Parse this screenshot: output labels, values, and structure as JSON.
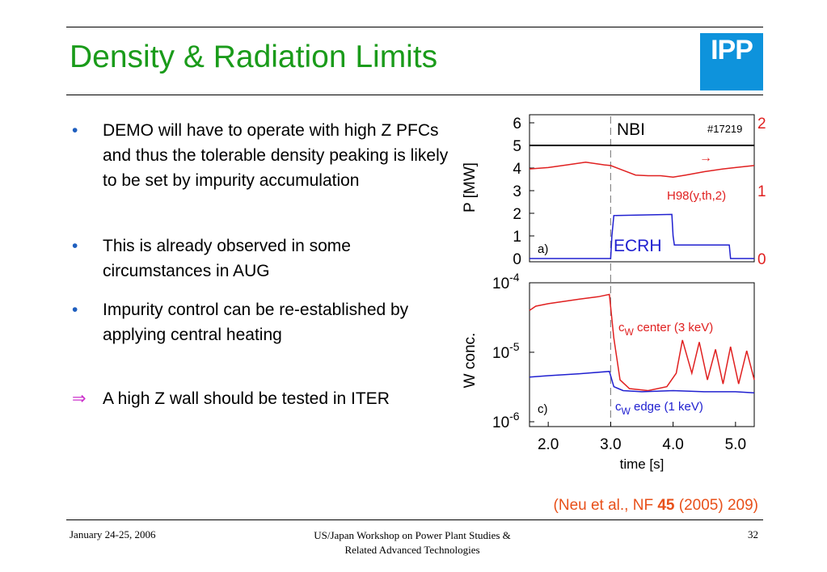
{
  "header": {
    "title": "Density & Radiation Limits",
    "logo_text": "IPP"
  },
  "bullets": [
    {
      "marker": "•",
      "text": "DEMO will have to operate with high Z PFCs and thus the tolerable density peaking is likely to be set by impurity accumulation"
    },
    {
      "marker": "•",
      "text": "This is already observed in some circumstances in AUG"
    },
    {
      "marker": "•",
      "text": "Impurity control can be re-established by applying central heating"
    },
    {
      "marker": "⇒",
      "text": "A high Z wall should be tested in ITER"
    }
  ],
  "citation": {
    "prefix": "(Neu et al., NF ",
    "volume": "45",
    "suffix": " (2005) 209)"
  },
  "footer": {
    "date": "January 24-25, 2006",
    "event_line1": "US/Japan Workshop on Power Plant Studies &",
    "event_line2": "Related Advanced Technologies",
    "page": "32"
  },
  "colors": {
    "title": "#1a9b1a",
    "logo": "#0e93dc",
    "citation": "#e8501a",
    "red": "#e02020",
    "blue": "#2020d0",
    "arrow": "#cc33cc"
  },
  "chart_data": [
    {
      "type": "line",
      "panel_label": "a)",
      "shot": "#17219",
      "ylabel": "P  [MW]",
      "ylim": [
        0,
        6
      ],
      "yticks": [
        "0",
        "1",
        "2",
        "3",
        "4",
        "5",
        "6"
      ],
      "right_ylim": [
        0,
        2
      ],
      "right_yticks": [
        "0",
        "1",
        "2"
      ],
      "xlim": [
        1.7,
        5.3
      ],
      "series": [
        {
          "name": "NBI",
          "axis": "left",
          "color": "#000000",
          "x": [
            1.7,
            5.3
          ],
          "y": [
            5.0,
            5.0
          ]
        },
        {
          "name": "H98(y,th,2)",
          "axis": "right",
          "color": "#e02020",
          "x": [
            1.7,
            2.0,
            2.3,
            2.6,
            2.9,
            3.0,
            3.2,
            3.4,
            3.6,
            3.8,
            4.0,
            4.2,
            4.5,
            4.8,
            5.0,
            5.3
          ],
          "y": [
            1.32,
            1.34,
            1.38,
            1.42,
            1.38,
            1.37,
            1.3,
            1.23,
            1.22,
            1.22,
            1.2,
            1.23,
            1.28,
            1.32,
            1.34,
            1.37
          ]
        },
        {
          "name": "ECRH",
          "axis": "left",
          "color": "#2020d0",
          "x": [
            1.7,
            3.0,
            3.02,
            3.05,
            3.98,
            4.0,
            4.02,
            4.9,
            4.92,
            4.96,
            5.3
          ],
          "y": [
            0,
            0,
            1.0,
            1.9,
            1.95,
            1.0,
            0.6,
            0.6,
            0.0,
            0.0,
            0.0
          ]
        }
      ],
      "annotation_arrow": "→"
    },
    {
      "type": "line",
      "panel_label": "c)",
      "ylabel": "W conc.",
      "yscale": "log",
      "ylim": [
        1e-06,
        0.0001
      ],
      "xlabel": "time [s]",
      "xlim": [
        1.7,
        5.3
      ],
      "xticks": [
        "2.0",
        "3.0",
        "4.0",
        "5.0"
      ],
      "series": [
        {
          "name": "c_W center (3 keV)",
          "color": "#e02020",
          "x": [
            1.7,
            1.8,
            2.0,
            2.5,
            2.8,
            2.98,
            3.05,
            3.15,
            3.3,
            3.6,
            3.9,
            4.05,
            4.15,
            4.3,
            4.42,
            4.55,
            4.68,
            4.8,
            4.92,
            5.05,
            5.18,
            5.3
          ],
          "y": [
            4e-05,
            4.6e-05,
            5e-05,
            5.8e-05,
            6.3e-05,
            6.8e-05,
            1.6e-05,
            4e-06,
            3e-06,
            2.8e-06,
            3.2e-06,
            5e-06,
            1.5e-05,
            5e-06,
            1.4e-05,
            4e-06,
            1.1e-05,
            3.5e-06,
            1.2e-05,
            3.5e-06,
            1.05e-05,
            4e-06
          ]
        },
        {
          "name": "c_W edge (1 keV)",
          "color": "#2020d0",
          "x": [
            1.7,
            2.0,
            2.5,
            2.98,
            3.05,
            3.2,
            3.5,
            4.0,
            4.5,
            5.0,
            5.3
          ],
          "y": [
            4.4e-06,
            4.6e-06,
            4.9e-06,
            5.3e-06,
            3.2e-06,
            2.8e-06,
            2.7e-06,
            2.8e-06,
            2.7e-06,
            2.7e-06,
            2.6e-06
          ]
        }
      ],
      "labels": {
        "center_sym": "c",
        "center_sub": "W",
        "center_rest": " center (3 keV)",
        "edge_sym": "c",
        "edge_sub": "W",
        "edge_rest": " edge (1 keV)"
      },
      "yticks": [
        {
          "base": "10",
          "exp": "-4",
          "value": 0.0001
        },
        {
          "base": "10",
          "exp": "-5",
          "value": 1e-05
        },
        {
          "base": "10",
          "exp": "-6",
          "value": 1e-06
        }
      ],
      "vline_x": 3.0
    }
  ]
}
